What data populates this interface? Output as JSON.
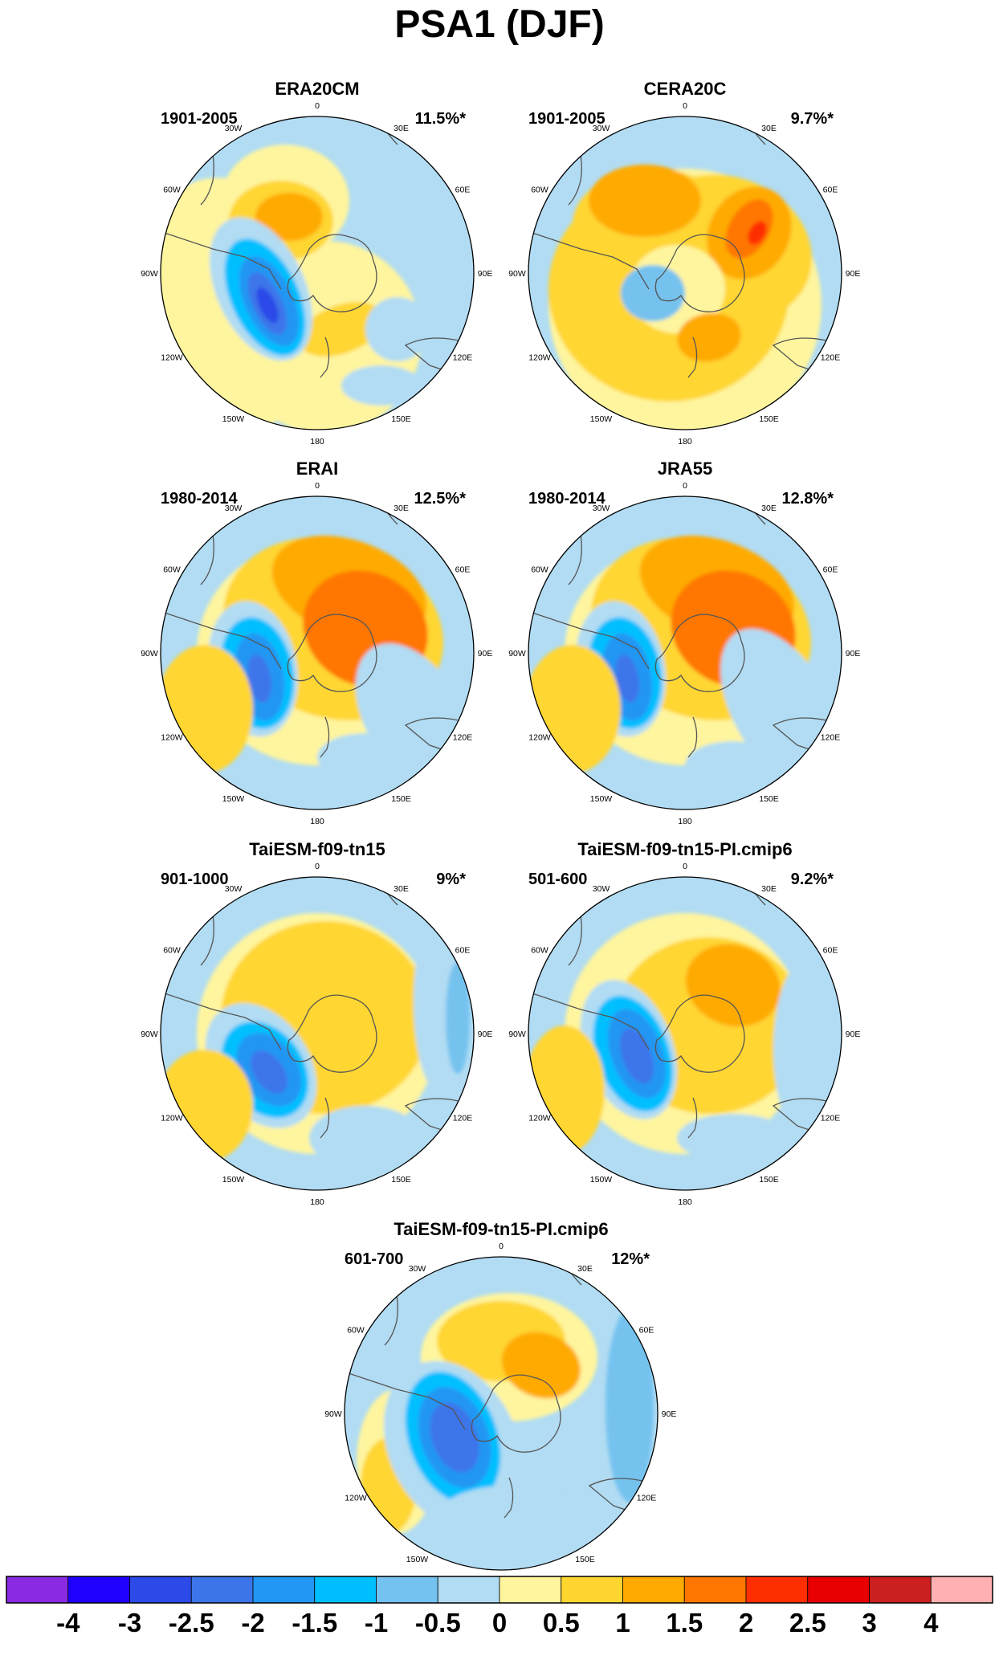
{
  "title": "PSA1 (DJF)",
  "panels": [
    {
      "name": "ERA20CM",
      "period": "1901-2005",
      "variance": "11.5%*"
    },
    {
      "name": "CERA20C",
      "period": "1901-2005",
      "variance": "9.7%*"
    },
    {
      "name": "ERAI",
      "period": "1980-2014",
      "variance": "12.5%*"
    },
    {
      "name": "JRA55",
      "period": "1980-2014",
      "variance": "12.8%*"
    },
    {
      "name": "TaiESM-f09-tn15",
      "period": "901-1000",
      "variance": "9%*"
    },
    {
      "name": "TaiESM-f09-tn15-PI.cmip6",
      "period": "501-600",
      "variance": "9.2%*"
    },
    {
      "name": "TaiESM-f09-tn15-PI.cmip6",
      "period": "601-700",
      "variance": "12%*"
    }
  ],
  "longitude_labels": [
    "0",
    "30E",
    "60E",
    "90E",
    "120E",
    "150E",
    "180",
    "150W",
    "120W",
    "90W",
    "60W",
    "30W"
  ],
  "colorbar": {
    "labels": [
      "-4",
      "-3",
      "-2.5",
      "-2",
      "-1.5",
      "-1",
      "-0.5",
      "0",
      "0.5",
      "1",
      "1.5",
      "2",
      "2.5",
      "3",
      "4"
    ],
    "colors": [
      "#8a2be2",
      "#1f00ff",
      "#2c4ae8",
      "#3c75ea",
      "#2196f3",
      "#00bfff",
      "#74c2ef",
      "#b1dcf3",
      "#fff59e",
      "#ffd630",
      "#ffaa00",
      "#ff7700",
      "#ff2e00",
      "#e80000",
      "#cc1f1f",
      "#ffb0b0"
    ]
  }
}
